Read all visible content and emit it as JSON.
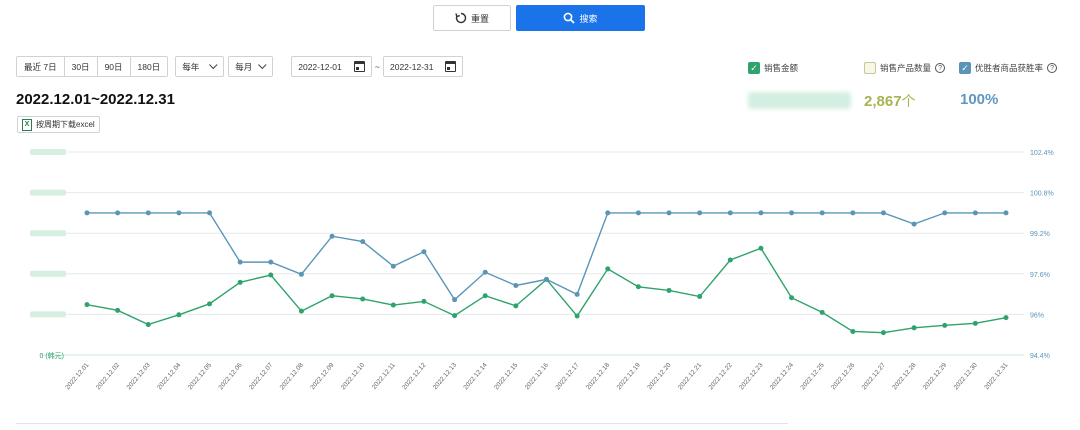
{
  "toolbar": {
    "reset_label": "重置",
    "search_label": "搜索"
  },
  "filters": {
    "quick_ranges": [
      "最近 7日",
      "30日",
      "90日",
      "180日"
    ],
    "period_select": "每年",
    "month_select": "每月",
    "date_from": "2022-12-01",
    "date_to": "2022-12-31",
    "date_sep": "~"
  },
  "legend": {
    "sales_amount": {
      "label": "销售金额",
      "checked": true,
      "color": "#2ea36b"
    },
    "product_count": {
      "label": "销售产品数量",
      "checked": false,
      "color": "#a8b352"
    },
    "win_rate": {
      "label": "优胜者商品获胜率",
      "checked": true,
      "color": "#5a95b8"
    }
  },
  "summary": {
    "range_title": "2022.12.01~2022.12.31",
    "excel_label": "按周期下载excel",
    "excel_icon": "excel-icon",
    "count_value": "2,867",
    "count_unit": "个",
    "rate_value": "100%"
  },
  "chart_data": {
    "type": "line",
    "categories": [
      "2022.12.01",
      "2022.12.02",
      "2022.12.03",
      "2022.12.04",
      "2022.12.05",
      "2022.12.06",
      "2022.12.07",
      "2022.12.08",
      "2022.12.09",
      "2022.12.10",
      "2022.12.11",
      "2022.12.12",
      "2022.12.13",
      "2022.12.14",
      "2022.12.15",
      "2022.12.16",
      "2022.12.17",
      "2022.12.18",
      "2022.12.19",
      "2022.12.20",
      "2022.12.21",
      "2022.12.22",
      "2022.12.23",
      "2022.12.24",
      "2022.12.25",
      "2022.12.26",
      "2022.12.27",
      "2022.12.28",
      "2022.12.29",
      "2022.12.30",
      "2022.12.31"
    ],
    "left_axis": {
      "bottom_label": "0 (韩元)",
      "ticks_count": 6,
      "color": "#2ea36b"
    },
    "right_axis": {
      "ticks": [
        "94.4%",
        "96%",
        "97.6%",
        "99.2%",
        "100.8%",
        "102.4%"
      ],
      "min": 94.4,
      "max": 102.4,
      "color": "#5a95b8"
    },
    "series": [
      {
        "name": "销售金额",
        "axis": "left",
        "color": "#2ea36b",
        "values": [
          1.24,
          1.1,
          0.75,
          0.99,
          1.26,
          1.79,
          1.97,
          1.08,
          1.46,
          1.38,
          1.23,
          1.32,
          0.97,
          1.46,
          1.21,
          1.86,
          0.96,
          2.12,
          1.68,
          1.59,
          1.44,
          2.34,
          2.63,
          1.41,
          1.05,
          0.58,
          0.55,
          0.67,
          0.73,
          0.78,
          0.92
        ],
        "ymin": 0,
        "ymax": 5
      },
      {
        "name": "优胜者商品获胜率",
        "axis": "right",
        "color": "#5a95b8",
        "values": [
          100.0,
          100.0,
          100.0,
          100.0,
          100.0,
          98.06,
          98.06,
          97.58,
          99.08,
          98.87,
          97.9,
          98.47,
          96.58,
          97.66,
          97.14,
          97.38,
          96.79,
          100.0,
          100.0,
          100.0,
          100.0,
          100.0,
          100.0,
          100.0,
          100.0,
          100.0,
          100.0,
          99.56,
          100.0,
          100.0,
          100.0
        ]
      }
    ],
    "grid": true
  }
}
